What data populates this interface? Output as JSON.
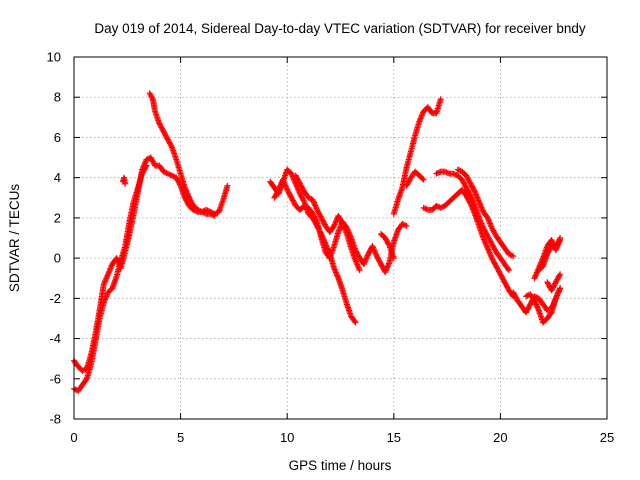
{
  "chart_data": {
    "type": "scatter",
    "title": "Day 019 of 2014, Sidereal Day-to-day VTEC variation (SDTVAR) for receiver bndy",
    "xlabel": "GPS time / hours",
    "ylabel": "SDTVAR / TECUs",
    "xlim": [
      0,
      25
    ],
    "ylim": [
      -8,
      10
    ],
    "xticks": [
      "0",
      "5",
      "10",
      "15",
      "20",
      "25"
    ],
    "yticks": [
      "-8",
      "-6",
      "-4",
      "-2",
      "0",
      "2",
      "4",
      "6",
      "8",
      "10"
    ],
    "grid": true,
    "marker": "plus",
    "color": "#ff0000",
    "series": [
      {
        "name": "bndy",
        "segments": [
          [
            [
              0.0,
              -5.1
            ],
            [
              0.2,
              -5.4
            ],
            [
              0.4,
              -5.6
            ],
            [
              0.6,
              -5.5
            ],
            [
              0.8,
              -4.8
            ],
            [
              1.0,
              -3.8
            ],
            [
              1.2,
              -2.6
            ],
            [
              1.4,
              -1.3
            ],
            [
              1.6,
              -0.8
            ],
            [
              1.8,
              -0.3
            ],
            [
              2.0,
              0.0
            ],
            [
              2.2,
              -0.5
            ],
            [
              2.4,
              0.3
            ],
            [
              2.6,
              1.2
            ],
            [
              2.8,
              2.2
            ],
            [
              3.0,
              3.3
            ],
            [
              3.2,
              4.4
            ],
            [
              3.4,
              4.9
            ],
            [
              3.6,
              5.0
            ],
            [
              3.8,
              4.6
            ],
            [
              4.0,
              4.6
            ],
            [
              4.2,
              4.3
            ],
            [
              4.4,
              4.2
            ],
            [
              4.6,
              4.1
            ],
            [
              4.8,
              4.0
            ],
            [
              5.0,
              3.6
            ],
            [
              5.2,
              3.0
            ],
            [
              5.4,
              2.6
            ],
            [
              5.6,
              2.4
            ],
            [
              5.8,
              2.3
            ],
            [
              6.0,
              2.3
            ],
            [
              6.2,
              2.4
            ],
            [
              6.4,
              2.3
            ],
            [
              6.6,
              2.2
            ],
            [
              6.8,
              2.3
            ],
            [
              7.0,
              2.9
            ],
            [
              7.2,
              3.6
            ]
          ],
          [
            [
              0.0,
              -6.5
            ],
            [
              0.2,
              -6.6
            ],
            [
              0.4,
              -6.3
            ],
            [
              0.6,
              -6.0
            ],
            [
              0.8,
              -5.3
            ],
            [
              1.0,
              -4.2
            ],
            [
              1.2,
              -3.0
            ],
            [
              1.4,
              -2.2
            ],
            [
              1.6,
              -1.7
            ],
            [
              1.8,
              -1.5
            ],
            [
              2.0,
              -0.9
            ],
            [
              2.2,
              -0.1
            ],
            [
              2.4,
              0.6
            ],
            [
              2.6,
              1.8
            ],
            [
              2.8,
              2.8
            ],
            [
              3.0,
              3.5
            ],
            [
              3.2,
              4.2
            ],
            [
              3.4,
              4.6
            ]
          ],
          [
            [
              2.3,
              3.8
            ],
            [
              2.35,
              4.0
            ],
            [
              2.4,
              3.7
            ]
          ],
          [
            [
              3.55,
              8.2
            ],
            [
              3.7,
              7.9
            ],
            [
              3.8,
              7.3
            ],
            [
              4.0,
              6.7
            ],
            [
              4.2,
              6.3
            ],
            [
              4.4,
              5.9
            ],
            [
              4.6,
              5.5
            ],
            [
              4.8,
              4.9
            ],
            [
              5.0,
              4.2
            ],
            [
              5.2,
              3.5
            ],
            [
              5.4,
              3.0
            ],
            [
              5.6,
              2.6
            ],
            [
              5.8,
              2.4
            ],
            [
              6.0,
              2.3
            ],
            [
              6.2,
              2.2
            ],
            [
              6.4,
              2.2
            ],
            [
              6.6,
              2.1
            ]
          ],
          [
            [
              9.2,
              3.8
            ],
            [
              9.4,
              3.5
            ],
            [
              9.6,
              3.2
            ],
            [
              9.8,
              3.8
            ],
            [
              10.0,
              4.4
            ],
            [
              10.2,
              4.2
            ],
            [
              10.4,
              3.7
            ],
            [
              10.6,
              3.2
            ],
            [
              10.8,
              2.8
            ],
            [
              11.0,
              2.2
            ],
            [
              11.2,
              2.0
            ],
            [
              11.4,
              1.6
            ],
            [
              11.6,
              1.2
            ],
            [
              11.8,
              0.7
            ],
            [
              12.0,
              0.2
            ],
            [
              12.2,
              -0.5
            ],
            [
              12.4,
              -1.0
            ],
            [
              12.6,
              -1.6
            ],
            [
              12.8,
              -2.3
            ],
            [
              13.0,
              -2.9
            ],
            [
              13.2,
              -3.2
            ]
          ],
          [
            [
              9.4,
              3.0
            ],
            [
              9.6,
              3.4
            ],
            [
              9.8,
              3.9
            ],
            [
              10.0,
              3.4
            ],
            [
              10.2,
              3.0
            ],
            [
              10.4,
              2.6
            ],
            [
              10.6,
              2.4
            ],
            [
              10.8,
              2.6
            ],
            [
              11.0,
              2.5
            ],
            [
              11.2,
              2.2
            ],
            [
              11.4,
              1.8
            ],
            [
              11.6,
              1.0
            ],
            [
              11.8,
              0.3
            ],
            [
              12.0,
              0.0
            ],
            [
              12.2,
              0.6
            ],
            [
              12.4,
              1.3
            ],
            [
              12.6,
              1.8
            ],
            [
              12.8,
              1.5
            ],
            [
              13.0,
              1.0
            ],
            [
              13.2,
              0.4
            ],
            [
              13.4,
              0.0
            ],
            [
              13.6,
              -0.3
            ],
            [
              13.8,
              0.2
            ],
            [
              14.0,
              0.6
            ],
            [
              14.2,
              0.1
            ],
            [
              14.4,
              -0.3
            ],
            [
              14.6,
              -0.7
            ],
            [
              14.8,
              -0.2
            ],
            [
              15.0,
              0.8
            ],
            [
              15.2,
              1.4
            ],
            [
              15.4,
              1.7
            ],
            [
              15.6,
              1.6
            ]
          ],
          [
            [
              10.4,
              4.1
            ],
            [
              10.6,
              3.7
            ],
            [
              10.8,
              3.3
            ],
            [
              11.0,
              3.0
            ],
            [
              11.2,
              2.9
            ],
            [
              11.4,
              2.4
            ],
            [
              11.6,
              2.0
            ],
            [
              11.8,
              1.6
            ],
            [
              12.0,
              1.3
            ],
            [
              12.2,
              1.6
            ],
            [
              12.4,
              2.1
            ],
            [
              12.6,
              1.7
            ],
            [
              12.8,
              1.2
            ],
            [
              13.0,
              0.5
            ],
            [
              13.2,
              -0.1
            ],
            [
              13.4,
              -0.6
            ]
          ],
          [
            [
              14.4,
              1.2
            ],
            [
              14.6,
              1.0
            ],
            [
              14.8,
              0.6
            ],
            [
              15.0,
              0.0
            ]
          ],
          [
            [
              15.0,
              2.2
            ],
            [
              15.2,
              2.9
            ],
            [
              15.4,
              3.5
            ],
            [
              15.6,
              4.5
            ],
            [
              15.8,
              5.3
            ],
            [
              16.0,
              6.1
            ],
            [
              16.2,
              6.8
            ],
            [
              16.4,
              7.3
            ],
            [
              16.6,
              7.5
            ],
            [
              16.8,
              7.2
            ],
            [
              17.0,
              7.2
            ],
            [
              17.2,
              7.9
            ]
          ],
          [
            [
              15.6,
              3.6
            ],
            [
              15.8,
              4.0
            ],
            [
              16.0,
              4.3
            ],
            [
              16.2,
              4.1
            ],
            [
              16.4,
              3.9
            ]
          ],
          [
            [
              16.4,
              2.5
            ],
            [
              16.6,
              2.4
            ],
            [
              16.8,
              2.4
            ],
            [
              17.0,
              2.6
            ],
            [
              17.2,
              2.5
            ],
            [
              17.4,
              2.6
            ],
            [
              17.6,
              2.8
            ],
            [
              17.8,
              3.0
            ],
            [
              18.0,
              3.2
            ],
            [
              18.2,
              3.4
            ],
            [
              18.4,
              3.1
            ],
            [
              18.6,
              2.7
            ],
            [
              18.8,
              2.2
            ],
            [
              19.0,
              1.6
            ],
            [
              19.2,
              1.0
            ],
            [
              19.4,
              0.5
            ],
            [
              19.6,
              0.0
            ],
            [
              19.8,
              -0.4
            ],
            [
              20.0,
              -0.8
            ],
            [
              20.2,
              -1.2
            ],
            [
              20.4,
              -1.6
            ],
            [
              20.6,
              -1.9
            ]
          ],
          [
            [
              17.0,
              4.2
            ],
            [
              17.2,
              4.3
            ],
            [
              17.4,
              4.3
            ],
            [
              17.6,
              4.2
            ],
            [
              17.8,
              4.2
            ],
            [
              18.0,
              4.1
            ],
            [
              18.2,
              3.9
            ],
            [
              18.4,
              3.5
            ],
            [
              18.6,
              3.1
            ],
            [
              18.8,
              2.6
            ],
            [
              19.0,
              2.0
            ],
            [
              19.2,
              1.5
            ],
            [
              19.4,
              1.1
            ],
            [
              19.6,
              0.7
            ],
            [
              19.8,
              0.3
            ],
            [
              20.0,
              0.0
            ],
            [
              20.2,
              -0.3
            ],
            [
              20.4,
              -0.6
            ]
          ],
          [
            [
              18.0,
              4.4
            ],
            [
              18.2,
              4.3
            ],
            [
              18.4,
              4.1
            ],
            [
              18.6,
              3.7
            ],
            [
              18.8,
              3.3
            ],
            [
              19.0,
              2.8
            ],
            [
              19.2,
              2.3
            ],
            [
              19.4,
              2.0
            ],
            [
              19.6,
              1.5
            ],
            [
              19.8,
              1.1
            ],
            [
              20.0,
              0.8
            ],
            [
              20.2,
              0.5
            ],
            [
              20.4,
              0.2
            ],
            [
              20.6,
              0.1
            ]
          ],
          [
            [
              20.6,
              -1.7
            ],
            [
              20.8,
              -2.1
            ],
            [
              21.0,
              -2.4
            ],
            [
              21.2,
              -2.7
            ],
            [
              21.4,
              -2.3
            ],
            [
              21.6,
              -1.9
            ],
            [
              21.8,
              -2.0
            ],
            [
              22.0,
              -2.3
            ],
            [
              22.2,
              -2.6
            ],
            [
              22.4,
              -2.5
            ],
            [
              22.6,
              -2.0
            ],
            [
              22.8,
              -1.5
            ]
          ],
          [
            [
              21.2,
              -1.9
            ],
            [
              21.4,
              -1.8
            ],
            [
              21.6,
              -2.1
            ],
            [
              21.8,
              -2.6
            ],
            [
              22.0,
              -3.2
            ],
            [
              22.2,
              -3.0
            ],
            [
              22.4,
              -2.7
            ],
            [
              22.6,
              -2.0
            ],
            [
              22.8,
              -1.5
            ]
          ],
          [
            [
              21.6,
              -1.0
            ],
            [
              21.8,
              -0.5
            ],
            [
              22.0,
              0.0
            ],
            [
              22.2,
              0.6
            ],
            [
              22.4,
              0.9
            ],
            [
              22.6,
              0.4
            ],
            [
              22.8,
              0.9
            ]
          ],
          [
            [
              21.8,
              -0.6
            ],
            [
              22.0,
              -0.4
            ],
            [
              22.2,
              0.2
            ],
            [
              22.4,
              0.6
            ],
            [
              22.6,
              0.5
            ],
            [
              22.8,
              1.0
            ]
          ],
          [
            [
              22.2,
              -1.2
            ],
            [
              22.4,
              -1.6
            ],
            [
              22.6,
              -1.2
            ],
            [
              22.8,
              -0.8
            ]
          ]
        ]
      }
    ]
  }
}
